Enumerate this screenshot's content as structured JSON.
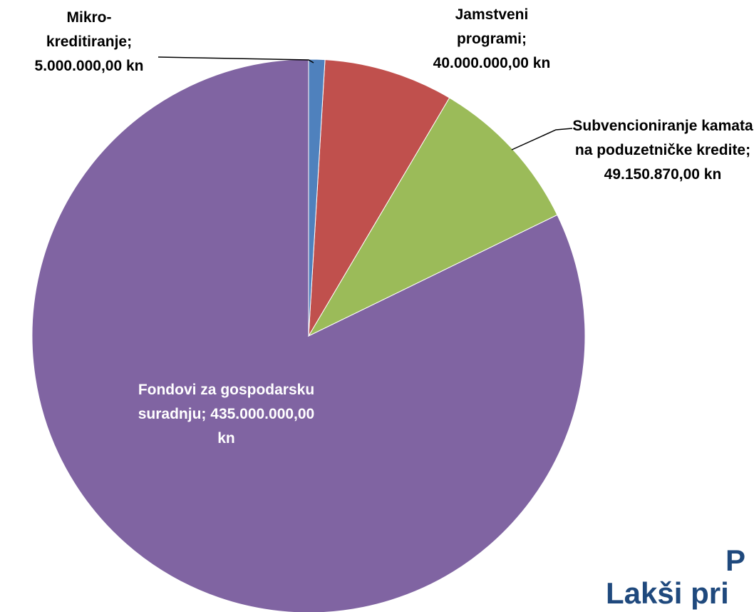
{
  "chart_data": {
    "type": "pie",
    "categories": [
      "Mikro-kreditiranje;",
      "Jamstveni programi;",
      "Subvencioniranje kamata na poduzetničke kredite;",
      "Fondovi za gospodarsku suradnju;"
    ],
    "values": [
      5000000,
      40000000,
      49150870,
      435000000
    ],
    "value_labels": [
      "5.000.000,00 kn",
      "40.000.000,00 kn",
      "49.150.870,00 kn",
      "435.000.000,00 kn"
    ],
    "colors": [
      "#4f81bd",
      "#c0504d",
      "#9bbb59",
      "#8064a2"
    ],
    "annotations": [
      "P",
      "Lakši pri"
    ]
  }
}
